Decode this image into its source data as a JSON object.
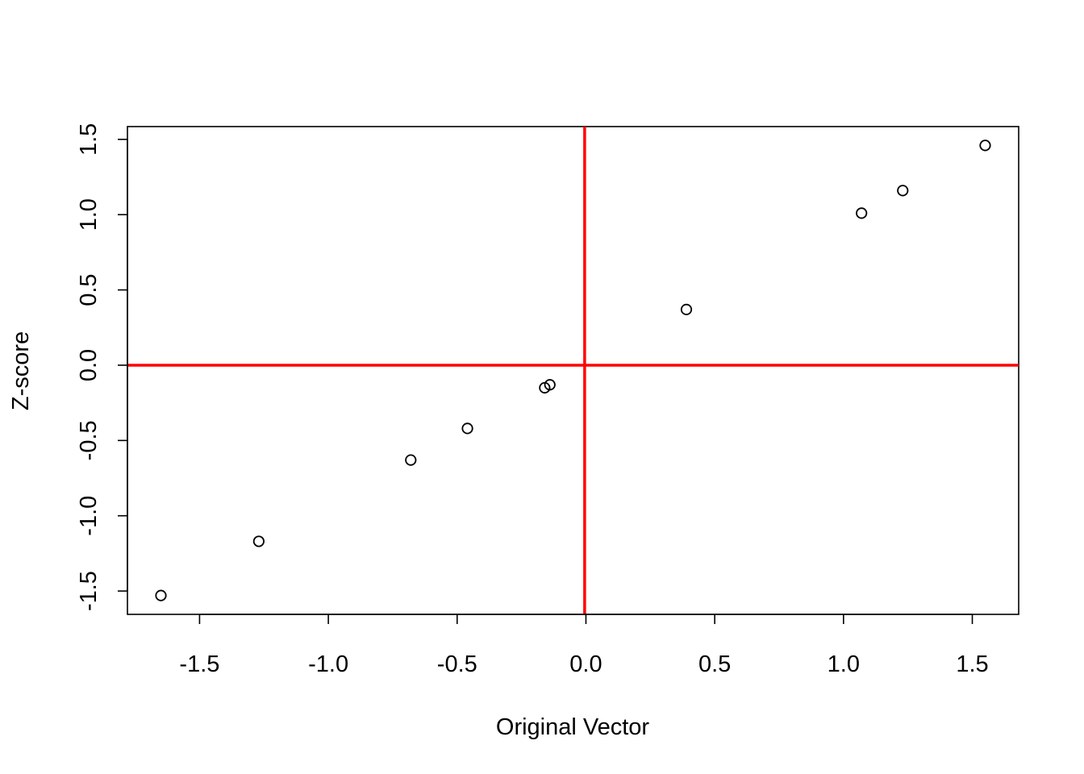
{
  "chart_data": {
    "type": "scatter",
    "title": "",
    "xlabel": "Original Vector",
    "ylabel": "Z-score",
    "xlim": [
      -1.78,
      1.68
    ],
    "ylim": [
      -1.655,
      1.585
    ],
    "x_ticks": [
      -1.5,
      -1.0,
      -0.5,
      0.0,
      0.5,
      1.0,
      1.5
    ],
    "x_tick_labels": [
      "-1.5",
      "-1.0",
      "-0.5",
      "0.0",
      "0.5",
      "1.0",
      "1.5"
    ],
    "y_ticks": [
      -1.5,
      -1.0,
      -0.5,
      0.0,
      0.5,
      1.0,
      1.5
    ],
    "y_tick_labels": [
      "-1.5",
      "-1.0",
      "-0.5",
      "0.0",
      "0.5",
      "1.0",
      "1.5"
    ],
    "grid": false,
    "series": [
      {
        "marker": "open-circle",
        "color": "#000000",
        "points": [
          {
            "x": -1.65,
            "y": -1.53
          },
          {
            "x": -1.27,
            "y": -1.17
          },
          {
            "x": -0.68,
            "y": -0.63
          },
          {
            "x": -0.46,
            "y": -0.42
          },
          {
            "x": -0.16,
            "y": -0.15
          },
          {
            "x": -0.14,
            "y": -0.13
          },
          {
            "x": 0.39,
            "y": 0.37
          },
          {
            "x": 1.07,
            "y": 1.01
          },
          {
            "x": 1.23,
            "y": 1.16
          },
          {
            "x": 1.55,
            "y": 1.46
          }
        ]
      }
    ],
    "reference_lines": [
      {
        "orientation": "horizontal",
        "value": 0.0,
        "color": "#ff0000"
      },
      {
        "orientation": "vertical",
        "value": -0.005,
        "color": "#ff0000"
      }
    ]
  }
}
